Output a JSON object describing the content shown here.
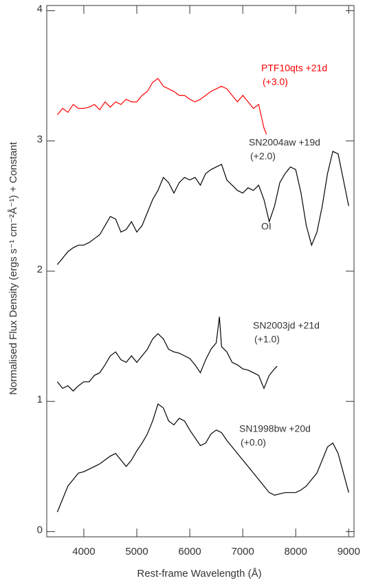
{
  "chart_data": {
    "type": "line",
    "xlabel": "Rest-frame Wavelength (Å)",
    "ylabel": "Normalised Flux Density (ergs s⁻¹ cm⁻²Å⁻¹) + Constant",
    "xlim": [
      3300,
      9100
    ],
    "xticks": [
      4000,
      5000,
      6000,
      7000,
      8000,
      9000
    ],
    "ylim": [
      -0.04,
      4.04
    ],
    "yticks": [
      0,
      1,
      2,
      3,
      4
    ],
    "grid": false,
    "annotations": [
      "OI"
    ],
    "series": [
      {
        "name": "PTF10qts +21d",
        "offset_label": "(+3.0)",
        "color": "#ff0000",
        "x": [
          3500,
          3600,
          3700,
          3800,
          3900,
          4000,
          4100,
          4200,
          4300,
          4400,
          4500,
          4600,
          4700,
          4800,
          4900,
          5000,
          5100,
          5200,
          5300,
          5400,
          5500,
          5600,
          5700,
          5800,
          5900,
          6000,
          6100,
          6200,
          6300,
          6400,
          6500,
          6600,
          6700,
          6800,
          6900,
          7000,
          7100,
          7200,
          7300,
          7400,
          7450
        ],
        "values": [
          3.2,
          3.25,
          3.22,
          3.28,
          3.25,
          3.25,
          3.26,
          3.28,
          3.24,
          3.3,
          3.26,
          3.3,
          3.28,
          3.32,
          3.3,
          3.3,
          3.35,
          3.38,
          3.45,
          3.48,
          3.42,
          3.4,
          3.38,
          3.35,
          3.35,
          3.32,
          3.3,
          3.32,
          3.35,
          3.38,
          3.4,
          3.42,
          3.4,
          3.35,
          3.3,
          3.35,
          3.3,
          3.25,
          3.28,
          3.1,
          3.05
        ]
      },
      {
        "name": "SN2004aw +19d",
        "offset_label": "(+2.0)",
        "color": "#000000",
        "x": [
          3500,
          3600,
          3700,
          3800,
          3900,
          4000,
          4100,
          4200,
          4300,
          4400,
          4500,
          4600,
          4700,
          4800,
          4900,
          5000,
          5100,
          5200,
          5300,
          5400,
          5500,
          5600,
          5700,
          5800,
          5900,
          6000,
          6100,
          6200,
          6300,
          6400,
          6500,
          6600,
          6700,
          6800,
          6900,
          7000,
          7100,
          7200,
          7300,
          7400,
          7500,
          7600,
          7700,
          7800,
          7900,
          8000,
          8100,
          8200,
          8300,
          8400,
          8500,
          8600,
          8700,
          8800,
          8900,
          9000
        ],
        "values": [
          2.05,
          2.1,
          2.15,
          2.18,
          2.2,
          2.2,
          2.22,
          2.25,
          2.28,
          2.35,
          2.42,
          2.4,
          2.3,
          2.32,
          2.38,
          2.3,
          2.35,
          2.45,
          2.55,
          2.62,
          2.72,
          2.68,
          2.6,
          2.68,
          2.72,
          2.7,
          2.72,
          2.66,
          2.75,
          2.78,
          2.8,
          2.82,
          2.7,
          2.66,
          2.62,
          2.6,
          2.64,
          2.62,
          2.66,
          2.55,
          2.38,
          2.5,
          2.68,
          2.75,
          2.8,
          2.78,
          2.6,
          2.35,
          2.2,
          2.3,
          2.5,
          2.75,
          2.92,
          2.9,
          2.7,
          2.5
        ]
      },
      {
        "name": "SN2003jd +21d",
        "offset_label": "(+1.0)",
        "color": "#000000",
        "x": [
          3500,
          3600,
          3700,
          3800,
          3900,
          4000,
          4100,
          4200,
          4300,
          4400,
          4500,
          4600,
          4700,
          4800,
          4900,
          5000,
          5100,
          5200,
          5300,
          5400,
          5500,
          5600,
          5700,
          5800,
          5900,
          6000,
          6100,
          6200,
          6300,
          6400,
          6500,
          6560,
          6600,
          6700,
          6800,
          6900,
          7000,
          7100,
          7200,
          7300,
          7400,
          7500,
          7600,
          7650
        ],
        "values": [
          1.15,
          1.1,
          1.12,
          1.08,
          1.12,
          1.15,
          1.15,
          1.2,
          1.22,
          1.28,
          1.35,
          1.38,
          1.32,
          1.3,
          1.35,
          1.3,
          1.35,
          1.4,
          1.48,
          1.52,
          1.48,
          1.4,
          1.38,
          1.37,
          1.35,
          1.33,
          1.28,
          1.22,
          1.32,
          1.4,
          1.45,
          1.65,
          1.42,
          1.38,
          1.3,
          1.28,
          1.25,
          1.24,
          1.22,
          1.2,
          1.1,
          1.2,
          1.25,
          1.27
        ]
      },
      {
        "name": "SN1998bw +20d",
        "offset_label": "(+0.0)",
        "color": "#000000",
        "x": [
          3500,
          3600,
          3700,
          3800,
          3900,
          4000,
          4100,
          4200,
          4300,
          4400,
          4500,
          4600,
          4700,
          4800,
          4900,
          5000,
          5100,
          5200,
          5300,
          5400,
          5500,
          5600,
          5700,
          5800,
          5900,
          6000,
          6100,
          6200,
          6300,
          6400,
          6500,
          6600,
          6700,
          6800,
          6900,
          7000,
          7100,
          7200,
          7300,
          7400,
          7500,
          7600,
          7700,
          7800,
          7900,
          8000,
          8100,
          8200,
          8300,
          8400,
          8500,
          8600,
          8700,
          8800,
          8900,
          9000
        ],
        "values": [
          0.15,
          0.25,
          0.35,
          0.4,
          0.45,
          0.46,
          0.48,
          0.5,
          0.52,
          0.55,
          0.58,
          0.6,
          0.55,
          0.5,
          0.55,
          0.62,
          0.68,
          0.75,
          0.85,
          0.98,
          0.95,
          0.85,
          0.82,
          0.87,
          0.85,
          0.78,
          0.72,
          0.66,
          0.68,
          0.75,
          0.78,
          0.76,
          0.7,
          0.65,
          0.6,
          0.55,
          0.5,
          0.45,
          0.4,
          0.35,
          0.3,
          0.28,
          0.29,
          0.3,
          0.3,
          0.3,
          0.32,
          0.35,
          0.4,
          0.45,
          0.55,
          0.65,
          0.68,
          0.6,
          0.45,
          0.3
        ]
      }
    ]
  }
}
